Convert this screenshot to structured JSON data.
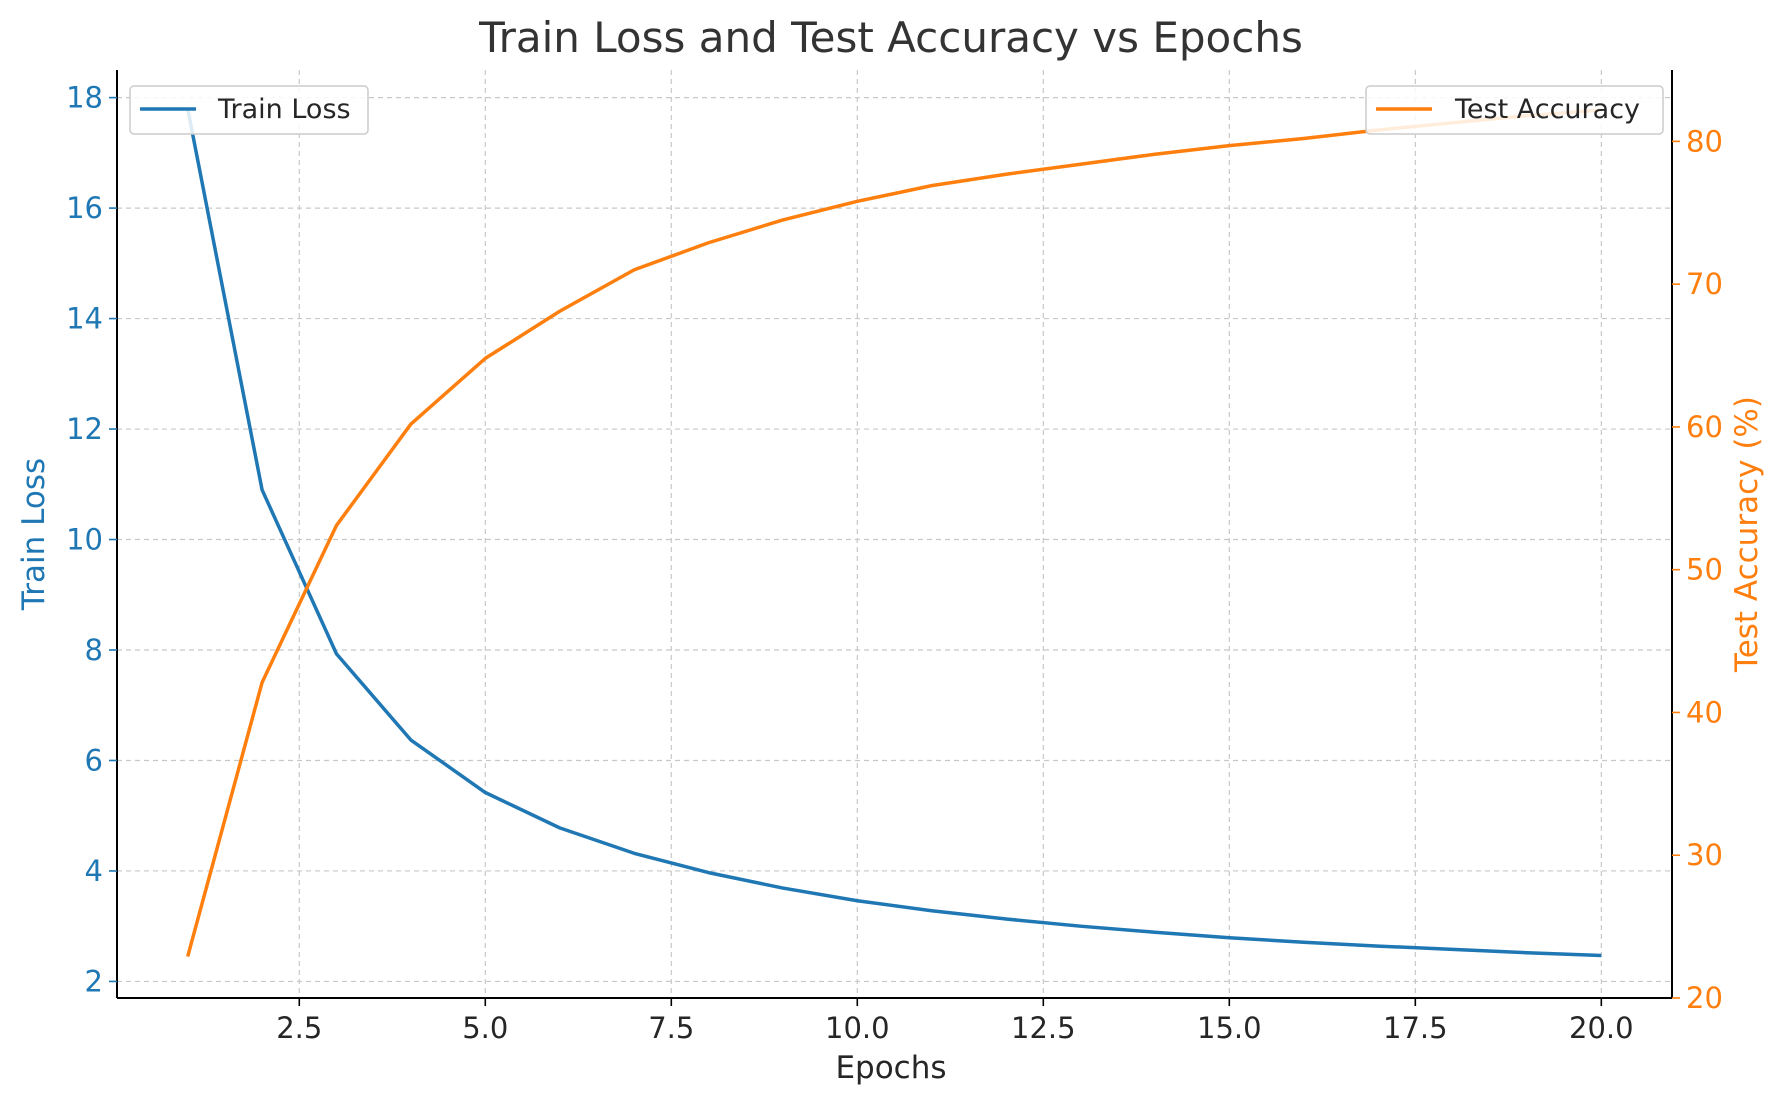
{
  "chart_data": {
    "type": "line",
    "title": "Train Loss and Test Accuracy vs Epochs",
    "xlabel": "Epochs",
    "ylabel_left": "Train Loss",
    "ylabel_right": "Test Accuracy (%)",
    "x": [
      1,
      2,
      3,
      4,
      5,
      6,
      7,
      8,
      9,
      10,
      11,
      12,
      13,
      14,
      15,
      16,
      17,
      18,
      19,
      20
    ],
    "xlim": [
      0.05,
      20.95
    ],
    "xticks": [
      2.5,
      5.0,
      7.5,
      10.0,
      12.5,
      15.0,
      17.5,
      20.0
    ],
    "xtick_labels": [
      "2.5",
      "5.0",
      "7.5",
      "10.0",
      "12.5",
      "15.0",
      "17.5",
      "20.0"
    ],
    "ylim_left": [
      1.7,
      18.5
    ],
    "yticks_left": [
      2,
      4,
      6,
      8,
      10,
      12,
      14,
      16,
      18
    ],
    "ytick_labels_left": [
      "2",
      "4",
      "6",
      "8",
      "10",
      "12",
      "14",
      "16",
      "18"
    ],
    "ylim_right": [
      20,
      85
    ],
    "yticks_right": [
      20,
      30,
      40,
      50,
      60,
      70,
      80
    ],
    "ytick_labels_right": [
      "20",
      "30",
      "40",
      "50",
      "60",
      "70",
      "80"
    ],
    "grid": true,
    "series": [
      {
        "name": "Train Loss",
        "axis": "left",
        "color": "#1f77b4",
        "values": [
          17.8,
          10.9,
          7.93,
          6.37,
          5.42,
          4.78,
          4.32,
          3.97,
          3.69,
          3.46,
          3.28,
          3.13,
          3.0,
          2.89,
          2.79,
          2.71,
          2.64,
          2.58,
          2.52,
          2.47
        ],
        "legend_position": "upper left"
      },
      {
        "name": "Test Accuracy",
        "axis": "right",
        "color": "#ff7f0e",
        "values": [
          22.9,
          42.1,
          53.1,
          60.2,
          64.8,
          68.1,
          71.0,
          72.9,
          74.5,
          75.8,
          76.9,
          77.7,
          78.4,
          79.1,
          79.7,
          80.2,
          80.8,
          81.3,
          81.8,
          82.2
        ],
        "legend_position": "upper right"
      }
    ]
  }
}
